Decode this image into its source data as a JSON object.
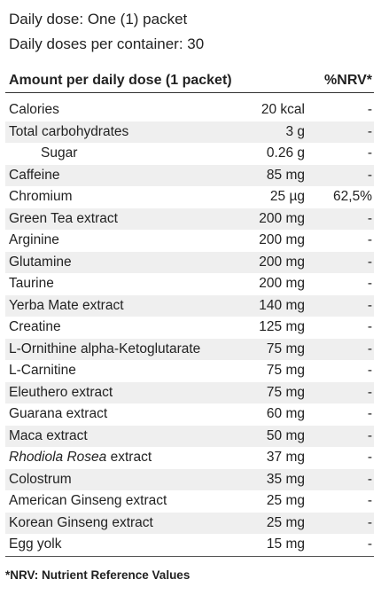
{
  "header": {
    "line1": "Daily dose: One (1) packet",
    "line2": "Daily doses per container: 30"
  },
  "table": {
    "columns": [
      "Amount per daily dose (1 packet)",
      "%NRV*"
    ],
    "rows": [
      {
        "name": "Calories",
        "amount": "20 kcal",
        "nrv": "-"
      },
      {
        "name": "Total carbohydrates",
        "amount": "3 g",
        "nrv": "-"
      },
      {
        "name": "Sugar",
        "amount": "0.26 g",
        "nrv": "-",
        "sub": true
      },
      {
        "name": "Caffeine",
        "amount": "85 mg",
        "nrv": "-"
      },
      {
        "name": "Chromium",
        "amount": "25 µg",
        "nrv": "62,5%"
      },
      {
        "name": "Green Tea extract",
        "amount": "200 mg",
        "nrv": "-"
      },
      {
        "name": "Arginine",
        "amount": "200 mg",
        "nrv": "-"
      },
      {
        "name": "Glutamine",
        "amount": "200 mg",
        "nrv": "-"
      },
      {
        "name": "Taurine",
        "amount": "200 mg",
        "nrv": "-"
      },
      {
        "name": "Yerba Mate extract",
        "amount": "140 mg",
        "nrv": "-"
      },
      {
        "name": "Creatine",
        "amount": "125 mg",
        "nrv": "-"
      },
      {
        "name": "L-Ornithine alpha-Ketoglutarate",
        "amount": "75 mg",
        "nrv": "-"
      },
      {
        "name": "L-Carnitine",
        "amount": "75 mg",
        "nrv": "-"
      },
      {
        "name": "Eleuthero extract",
        "amount": "75 mg",
        "nrv": "-"
      },
      {
        "name": "Guarana extract",
        "amount": "60 mg",
        "nrv": "-"
      },
      {
        "name": "Maca extract",
        "amount": "50 mg",
        "nrv": "-"
      },
      {
        "name_italic": "Rhodiola Rosea",
        "name": "extract",
        "amount": "37 mg",
        "nrv": "-"
      },
      {
        "name": "Colostrum",
        "amount": "35 mg",
        "nrv": "-"
      },
      {
        "name": "American Ginseng extract",
        "amount": "25 mg",
        "nrv": "-"
      },
      {
        "name": "Korean Ginseng extract",
        "amount": "25 mg",
        "nrv": "-"
      },
      {
        "name": "Egg yolk",
        "amount": "15 mg",
        "nrv": "-"
      }
    ]
  },
  "footnote": "*NRV: Nutrient Reference Values"
}
